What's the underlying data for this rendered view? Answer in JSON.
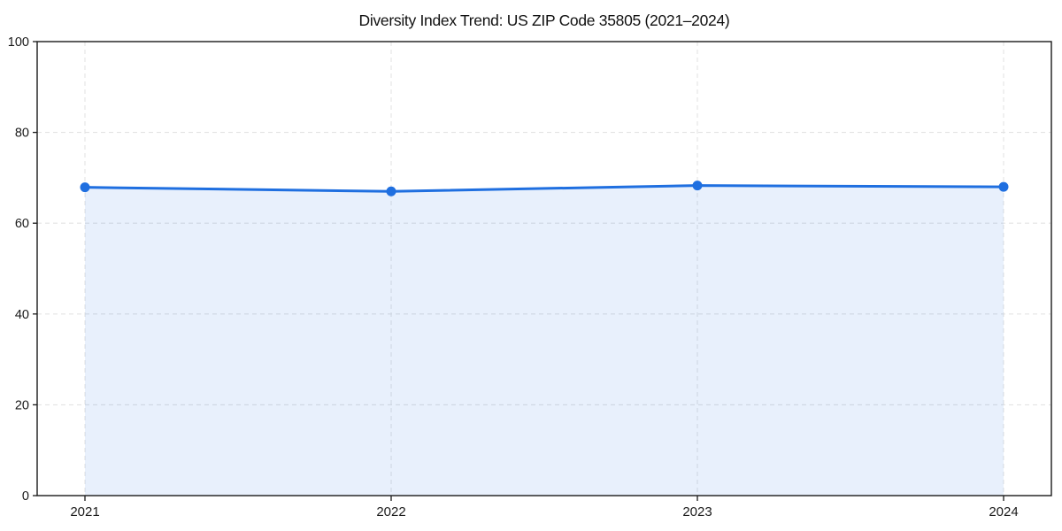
{
  "page": {
    "title": "Diversity Index Trend: US ZIP Code 35805 (2021–2024)"
  },
  "chart_data": {
    "type": "line",
    "title": "Diversity Index Trend: US ZIP Code 35805 (2021–2024)",
    "x": [
      "2021",
      "2022",
      "2023",
      "2024"
    ],
    "series": [
      {
        "name": "Diversity Index",
        "values": [
          67.9,
          67.0,
          68.3,
          68.0
        ]
      }
    ],
    "xlabel": "",
    "ylabel": "",
    "ylim": [
      0,
      100
    ],
    "yticks": [
      0,
      20,
      40,
      60,
      80,
      100
    ],
    "grid": true,
    "grid_style": "dashed",
    "legend_position": "none",
    "area_fill": true,
    "marker": "circle",
    "colors": {
      "line": "#1f6fe0",
      "marker": "#1f6fe0",
      "fill": "rgba(31,111,224,0.10)",
      "grid": "#e3e3e3",
      "spine": "#1a1a1a",
      "tick_text": "#1a1a1a",
      "background": "#ffffff"
    }
  }
}
